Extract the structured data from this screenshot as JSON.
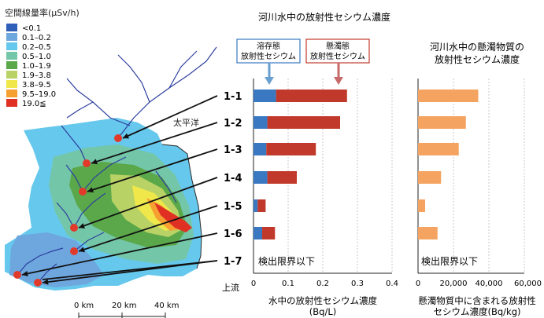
{
  "legend": {
    "title": "空間線量率(μSv/h)",
    "items": [
      {
        "label": "<0.1",
        "color": "#2f5fb8"
      },
      {
        "label": "0.1–0.2",
        "color": "#6ea6de"
      },
      {
        "label": "0.2–0.5",
        "color": "#66c8ec"
      },
      {
        "label": "0.5–1.0",
        "color": "#74c6a8"
      },
      {
        "label": "1.0–1.9",
        "color": "#5aa84a"
      },
      {
        "label": "1.9–3.8",
        "color": "#b8d265"
      },
      {
        "label": "3.8–9.5",
        "color": "#f0e84a"
      },
      {
        "label": "9.5–19.0",
        "color": "#f5a030"
      },
      {
        "label": "19.0≦",
        "color": "#e03024"
      }
    ]
  },
  "map": {
    "pacific_label": "太平洋",
    "scale_labels": [
      "0 km",
      "20 km",
      "40 km"
    ],
    "upstream_label": "上流",
    "sites": [
      "1-1",
      "1-2",
      "1-3",
      "1-4",
      "1-5",
      "1-6",
      "1-7"
    ]
  },
  "chart_data": [
    {
      "type": "bar",
      "stacked": true,
      "orientation": "horizontal",
      "title": "河川水中の放射性セシウム濃度",
      "categories": [
        "1-1",
        "1-2",
        "1-3",
        "1-4",
        "1-5",
        "1-6",
        "1-7"
      ],
      "series": [
        {
          "name": "溶存態\n放射性セシウム",
          "color": "#3a78c2",
          "values": [
            0.065,
            0.04,
            0.037,
            0.04,
            0.012,
            0.025,
            null
          ]
        },
        {
          "name": "懸濁態\n放射性セシウム",
          "color": "#c0392b",
          "values": [
            0.205,
            0.21,
            0.143,
            0.085,
            0.023,
            0.037,
            null
          ]
        }
      ],
      "annotation": "検出限界以下",
      "xlabel": "水中の放射性セシウム濃度\n(Bq/L)",
      "xticks": [
        "0",
        "0.1",
        "0.2",
        "0.3",
        "0.4"
      ],
      "xlim": [
        0,
        0.4
      ]
    },
    {
      "type": "bar",
      "orientation": "horizontal",
      "title": "河川水中の懸濁物質の\n放射性セシウム濃度",
      "categories": [
        "1-1",
        "1-2",
        "1-3",
        "1-4",
        "1-5",
        "1-6",
        "1-7"
      ],
      "series": [
        {
          "color": "#f4a460",
          "values": [
            34000,
            27000,
            23000,
            13000,
            4000,
            11000,
            null
          ]
        }
      ],
      "annotation": "検出限界以下",
      "xlabel": "懸濁物質中に含まれる放射性\nセシウム濃度(Bq/kg)",
      "xticks": [
        "0",
        "20,000",
        "40,000",
        "60,000"
      ],
      "xlim": [
        0,
        60000
      ]
    }
  ]
}
